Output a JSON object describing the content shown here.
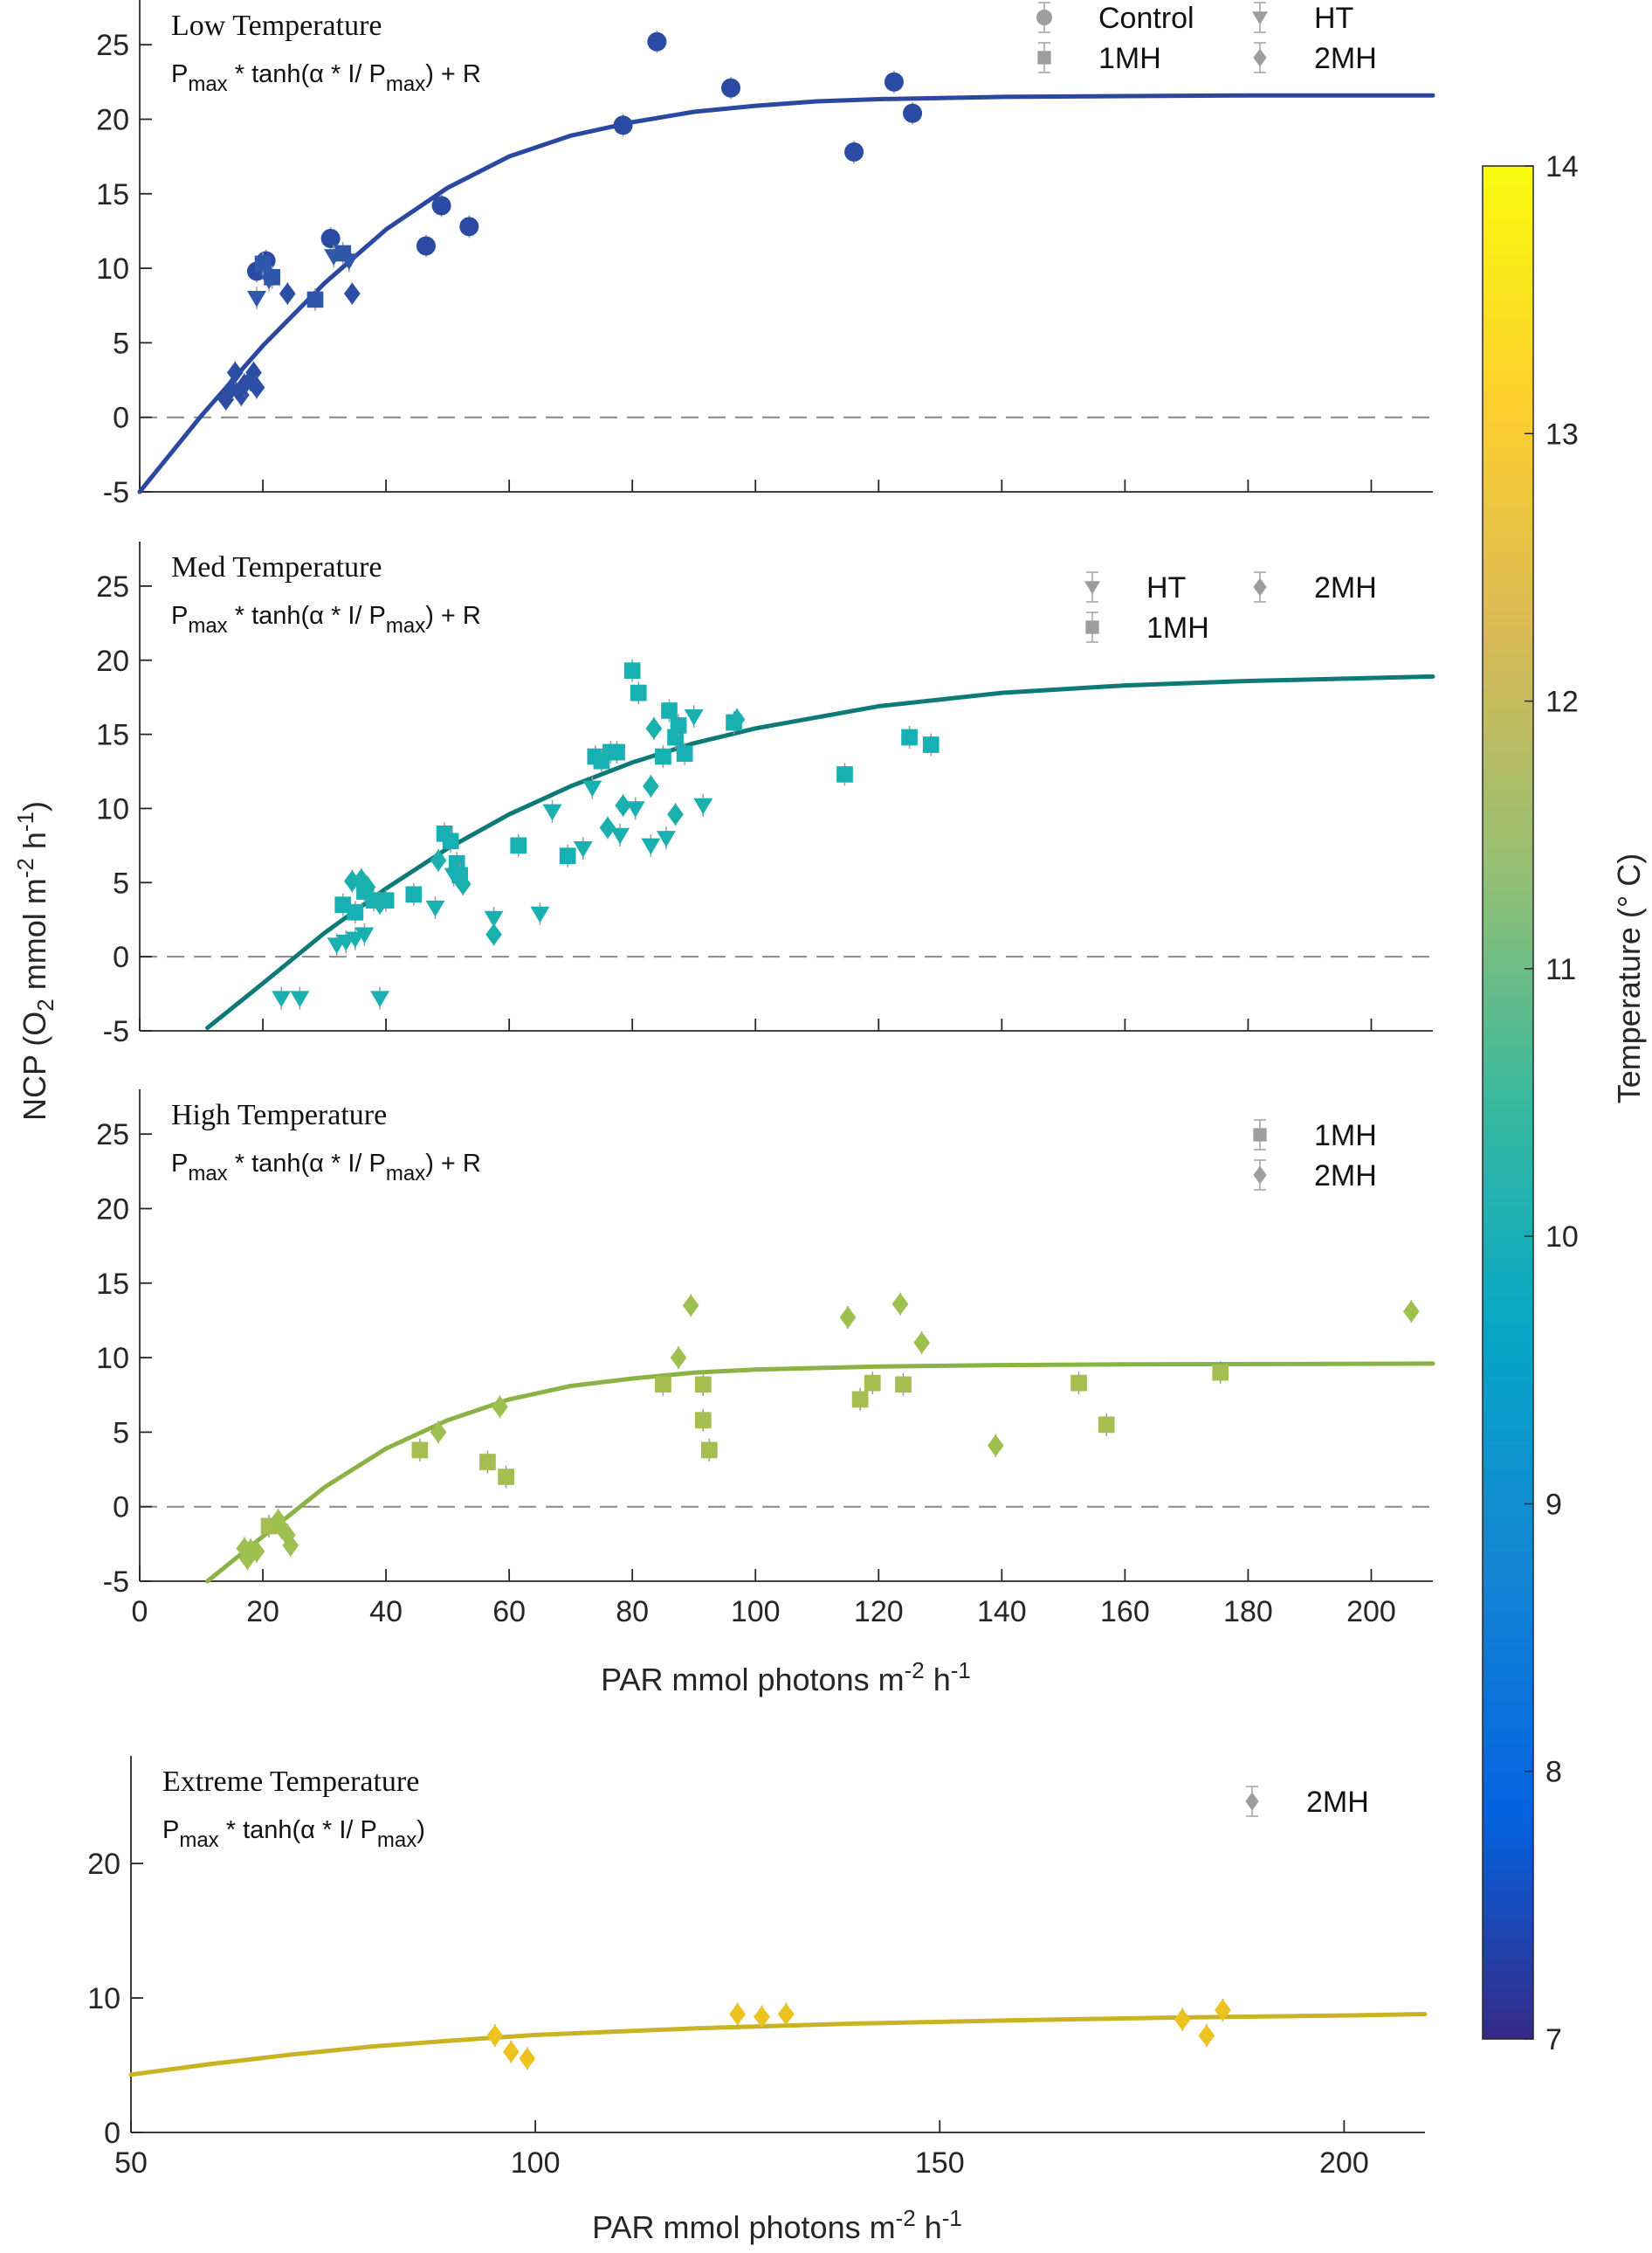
{
  "figure": {
    "ylabel": "NCP (O2 mmol m-2 h-1)",
    "ylabel_parts": {
      "a": "NCP (O",
      "sub": "2",
      "b": " mmol m",
      "sup1": "-2",
      "c": " h",
      "sup2": "-1",
      "d": ")"
    },
    "xlabel_parts": {
      "a": "PAR mmol photons m",
      "sup1": "-2",
      "b": " h",
      "sup2": "-1"
    },
    "grid": false
  },
  "colorbar": {
    "label": "Temperature (° C)",
    "min": 7,
    "max": 14,
    "ticks": [
      7,
      8,
      9,
      10,
      11,
      12,
      13,
      14
    ],
    "colormap": "parula",
    "stops": [
      "#352a87",
      "#0363e1",
      "#1485d4",
      "#06a7c6",
      "#38b99e",
      "#92bf73",
      "#d9ba56",
      "#fcce2e",
      "#f9fb0e"
    ]
  },
  "chart_data": [
    {
      "type": "scatter",
      "panel": "low",
      "title": "Low Temperature",
      "equation": {
        "p": "P",
        "sub1": "max",
        "mid": " * tanh(α * I/ P",
        "sub2": "max",
        "end": ") + R"
      },
      "xlim": [
        0,
        210
      ],
      "ylim": [
        -5,
        28
      ],
      "xticks": [
        0,
        20,
        40,
        60,
        80,
        100,
        120,
        140,
        160,
        180,
        200
      ],
      "yticks": [
        -5,
        0,
        5,
        10,
        15,
        20,
        25
      ],
      "show_xticklabels": false,
      "zero_line": true,
      "legend": {
        "placement": "top-right",
        "entries": [
          {
            "name": "Control",
            "marker": "circle"
          },
          {
            "name": "HT",
            "marker": "triangle-down"
          },
          {
            "name": "1MH",
            "marker": "square"
          },
          {
            "name": "2MH",
            "marker": "diamond"
          }
        ]
      },
      "fit": {
        "color": "#2a48a0",
        "points": [
          [
            0,
            -5
          ],
          [
            10,
            0.1
          ],
          [
            20,
            4.8
          ],
          [
            30,
            9
          ],
          [
            40,
            12.6
          ],
          [
            50,
            15.4
          ],
          [
            60,
            17.5
          ],
          [
            70,
            18.9
          ],
          [
            80,
            19.8
          ],
          [
            90,
            20.5
          ],
          [
            100,
            20.9
          ],
          [
            110,
            21.2
          ],
          [
            120,
            21.35
          ],
          [
            140,
            21.5
          ],
          [
            160,
            21.55
          ],
          [
            180,
            21.6
          ],
          [
            210,
            21.6
          ]
        ]
      },
      "series": [
        {
          "marker": "circle",
          "color": "#2b4aa3",
          "points": [
            [
              19,
              9.8
            ],
            [
              20,
              10
            ],
            [
              20.5,
              10.5
            ],
            [
              31,
              12
            ],
            [
              46.5,
              11.5
            ],
            [
              49,
              14.2
            ],
            [
              53.5,
              12.8
            ],
            [
              78.5,
              19.6
            ],
            [
              84,
              25.2
            ],
            [
              96,
              22.1
            ],
            [
              116,
              17.8
            ],
            [
              122.5,
              22.5
            ],
            [
              125.5,
              20.4
            ]
          ]
        },
        {
          "marker": "triangle-down",
          "color": "#2f56aa",
          "points": [
            [
              19,
              8
            ],
            [
              21,
              9.2
            ],
            [
              31.5,
              10.8
            ],
            [
              34,
              10.5
            ]
          ]
        },
        {
          "marker": "square",
          "color": "#2f58ab",
          "points": [
            [
              20,
              10.3
            ],
            [
              21.5,
              9.4
            ],
            [
              28.5,
              7.9
            ],
            [
              33,
              11
            ]
          ]
        },
        {
          "marker": "diamond",
          "color": "#2c4fa5",
          "points": [
            [
              14,
              1.2
            ],
            [
              15,
              2
            ],
            [
              15.5,
              3
            ],
            [
              16.5,
              1.5
            ],
            [
              17,
              2.2
            ],
            [
              18,
              2.5
            ],
            [
              18.5,
              3
            ],
            [
              19,
              2
            ],
            [
              24,
              8.3
            ],
            [
              34.5,
              8.3
            ]
          ]
        }
      ]
    },
    {
      "type": "scatter",
      "panel": "med",
      "title": "Med Temperature",
      "equation": {
        "p": "P",
        "sub1": "max",
        "mid": " * tanh(α * I/ P",
        "sub2": "max",
        "end": ") + R"
      },
      "xlim": [
        0,
        210
      ],
      "ylim": [
        -5,
        28
      ],
      "xticks": [
        0,
        20,
        40,
        60,
        80,
        100,
        120,
        140,
        160,
        180,
        200
      ],
      "yticks": [
        -5,
        0,
        5,
        10,
        15,
        20,
        25
      ],
      "show_xticklabels": false,
      "zero_line": true,
      "legend": {
        "placement": "top-right",
        "entries": [
          {
            "name": "HT",
            "marker": "triangle-down"
          },
          {
            "name": "2MH",
            "marker": "diamond"
          },
          {
            "name": "1MH",
            "marker": "square"
          }
        ]
      },
      "fit": {
        "color": "#0d7a78",
        "points": [
          [
            11,
            -4.8
          ],
          [
            20,
            -1.8
          ],
          [
            30,
            1.6
          ],
          [
            40,
            4.6
          ],
          [
            50,
            7.3
          ],
          [
            60,
            9.6
          ],
          [
            70,
            11.5
          ],
          [
            80,
            13.1
          ],
          [
            90,
            14.4
          ],
          [
            100,
            15.4
          ],
          [
            120,
            16.9
          ],
          [
            140,
            17.8
          ],
          [
            160,
            18.3
          ],
          [
            180,
            18.6
          ],
          [
            210,
            18.9
          ]
        ]
      },
      "series": [
        {
          "marker": "triangle-down",
          "color": "#1aafb0",
          "points": [
            [
              23,
              -2.8
            ],
            [
              26,
              -2.8
            ],
            [
              32,
              0.8
            ],
            [
              33.5,
              1
            ],
            [
              35,
              1.2
            ],
            [
              36.5,
              1.5
            ],
            [
              39,
              -2.8
            ],
            [
              48,
              3.3
            ],
            [
              51,
              5.5
            ],
            [
              57.5,
              2.6
            ],
            [
              65,
              2.9
            ],
            [
              67,
              9.8
            ],
            [
              72,
              7.3
            ],
            [
              73.5,
              11.4
            ],
            [
              78,
              8.2
            ],
            [
              80.5,
              10
            ],
            [
              83,
              7.5
            ],
            [
              85.5,
              8
            ],
            [
              90,
              16.2
            ],
            [
              91.5,
              10.2
            ]
          ]
        },
        {
          "marker": "square",
          "color": "#17b0b3",
          "points": [
            [
              33,
              3.5
            ],
            [
              35,
              3
            ],
            [
              36.5,
              4.4
            ],
            [
              38,
              3.8
            ],
            [
              40,
              3.8
            ],
            [
              44.5,
              4.2
            ],
            [
              49.5,
              8.3
            ],
            [
              50.5,
              7.8
            ],
            [
              51.5,
              6.3
            ],
            [
              52,
              5.5
            ],
            [
              61.5,
              7.5
            ],
            [
              69.5,
              6.8
            ],
            [
              74,
              13.5
            ],
            [
              75,
              13.2
            ],
            [
              76.5,
              13.8
            ],
            [
              77.5,
              13.8
            ],
            [
              80,
              19.3
            ],
            [
              81,
              17.8
            ],
            [
              85,
              13.5
            ],
            [
              86,
              16.6
            ],
            [
              87,
              14.8
            ],
            [
              87.5,
              15.6
            ],
            [
              88.5,
              13.7
            ],
            [
              96.5,
              15.8
            ],
            [
              114.5,
              12.3
            ],
            [
              125,
              14.8
            ],
            [
              128.5,
              14.3
            ]
          ]
        },
        {
          "marker": "diamond",
          "color": "#1ab1ad",
          "points": [
            [
              34.5,
              5.1
            ],
            [
              36,
              5.2
            ],
            [
              37,
              4.7
            ],
            [
              39,
              3.6
            ],
            [
              48.5,
              6.5
            ],
            [
              52.5,
              4.9
            ],
            [
              57.5,
              1.5
            ],
            [
              76,
              8.7
            ],
            [
              78.5,
              10.2
            ],
            [
              83,
              11.5
            ],
            [
              83.5,
              15.4
            ],
            [
              87,
              9.6
            ],
            [
              97,
              16
            ]
          ]
        }
      ]
    },
    {
      "type": "scatter",
      "panel": "high",
      "title": "High Temperature",
      "equation": {
        "p": "P",
        "sub1": "max",
        "mid": " * tanh(α * I/ P",
        "sub2": "max",
        "end": ") + R"
      },
      "xlim": [
        0,
        210
      ],
      "ylim": [
        -5,
        28
      ],
      "xticks": [
        0,
        20,
        40,
        60,
        80,
        100,
        120,
        140,
        160,
        180,
        200
      ],
      "yticks": [
        -5,
        0,
        5,
        10,
        15,
        20,
        25
      ],
      "show_xticklabels": true,
      "xlabel": true,
      "zero_line": true,
      "legend": {
        "placement": "top-right",
        "entries": [
          {
            "name": "1MH",
            "marker": "square"
          },
          {
            "name": "2MH",
            "marker": "diamond"
          }
        ]
      },
      "fit": {
        "color": "#8ab244",
        "points": [
          [
            11,
            -5
          ],
          [
            20,
            -2
          ],
          [
            30,
            1.3
          ],
          [
            40,
            3.9
          ],
          [
            50,
            5.8
          ],
          [
            60,
            7.2
          ],
          [
            70,
            8.1
          ],
          [
            80,
            8.6
          ],
          [
            90,
            9
          ],
          [
            100,
            9.2
          ],
          [
            120,
            9.4
          ],
          [
            140,
            9.5
          ],
          [
            160,
            9.55
          ],
          [
            210,
            9.6
          ]
        ]
      },
      "series": [
        {
          "marker": "square",
          "color": "#a4be50",
          "points": [
            [
              21,
              -1.3
            ],
            [
              45.5,
              3.8
            ],
            [
              56.5,
              3
            ],
            [
              59.5,
              2
            ],
            [
              85,
              8.2
            ],
            [
              91.5,
              8.2
            ],
            [
              91.5,
              5.8
            ],
            [
              92.5,
              3.8
            ],
            [
              117,
              7.2
            ],
            [
              119,
              8.3
            ],
            [
              124,
              8.2
            ],
            [
              152.5,
              8.3
            ],
            [
              157,
              5.5
            ],
            [
              175.5,
              9
            ]
          ]
        },
        {
          "marker": "diamond",
          "color": "#9dc04e",
          "points": [
            [
              17,
              -2.8
            ],
            [
              17.5,
              -3.5
            ],
            [
              18,
              -2.9
            ],
            [
              19,
              -3
            ],
            [
              22.5,
              -0.9
            ],
            [
              23,
              -1.4
            ],
            [
              24,
              -1.9
            ],
            [
              24.5,
              -2.6
            ],
            [
              48.5,
              5
            ],
            [
              58.5,
              6.7
            ],
            [
              87.5,
              10
            ],
            [
              89.5,
              13.5
            ],
            [
              115,
              12.7
            ],
            [
              123.5,
              13.6
            ],
            [
              127,
              11
            ],
            [
              139,
              4.1
            ],
            [
              206.5,
              13.1
            ]
          ]
        }
      ]
    },
    {
      "type": "scatter",
      "panel": "extreme",
      "title": "Extreme Temperature",
      "equation": {
        "p": "P",
        "sub1": "max",
        "mid": " * tanh(α * I/ P",
        "sub2": "max",
        "end": ")"
      },
      "xlim": [
        50,
        210
      ],
      "ylim": [
        0,
        28
      ],
      "xticks": [
        50,
        100,
        150,
        200
      ],
      "yticks": [
        0,
        10,
        20
      ],
      "show_xticklabels": true,
      "xlabel": true,
      "zero_line": false,
      "legend": {
        "placement": "top-right",
        "entries": [
          {
            "name": "2MH",
            "marker": "diamond"
          }
        ]
      },
      "fit": {
        "color": "#c9b323",
        "points": [
          [
            50,
            4.3
          ],
          [
            60,
            5.1
          ],
          [
            70,
            5.8
          ],
          [
            80,
            6.4
          ],
          [
            90,
            6.85
          ],
          [
            100,
            7.25
          ],
          [
            120,
            7.75
          ],
          [
            140,
            8.1
          ],
          [
            160,
            8.35
          ],
          [
            180,
            8.55
          ],
          [
            200,
            8.7
          ],
          [
            210,
            8.8
          ]
        ]
      },
      "series": [
        {
          "marker": "diamond",
          "color": "#ecc21f",
          "points": [
            [
              95,
              7.2
            ],
            [
              97,
              6
            ],
            [
              99,
              5.5
            ],
            [
              125,
              8.8
            ],
            [
              128,
              8.6
            ],
            [
              131,
              8.8
            ],
            [
              180,
              8.4
            ],
            [
              183,
              7.2
            ],
            [
              185,
              9.1
            ]
          ]
        }
      ]
    }
  ]
}
